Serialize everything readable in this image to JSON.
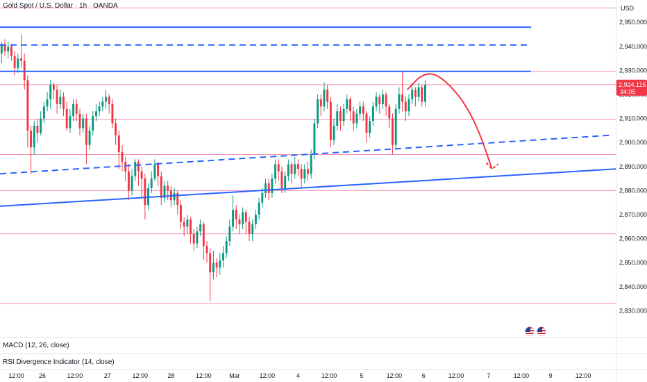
{
  "header": {
    "symbol_title": "Gold Spot / U.S. Dollar · 1h · OANDA"
  },
  "price_axis": {
    "currency": "USD"
  },
  "last_price": {
    "value": "2,924.115",
    "countdown": "34:05"
  },
  "indicators": [
    {
      "label": "MACD (12, 26, close)"
    },
    {
      "label": "RSI Divergence Indicator (14, close)"
    }
  ],
  "colors": {
    "up": "#089981",
    "down": "#f23645",
    "trend": "#2962ff",
    "levels": "#f48fb1",
    "forecast": "#f23645",
    "price_badge": "#f23645",
    "text": "#131722"
  },
  "chart_data": {
    "type": "candlestick",
    "title": "Gold Spot / U.S. Dollar · 1h · OANDA",
    "ylim": [
      2825.5,
      2957
    ],
    "yticks": [
      2830,
      2840,
      2850,
      2860,
      2870,
      2880,
      2890,
      2900,
      2910,
      2920,
      2930,
      2940,
      2950
    ],
    "xlim": [
      0,
      189
    ],
    "xticks": [
      {
        "x": 5,
        "label": "12:00"
      },
      {
        "x": 13,
        "label": "26"
      },
      {
        "x": 23,
        "label": "12:00"
      },
      {
        "x": 33,
        "label": "27"
      },
      {
        "x": 43,
        "label": "12:00"
      },
      {
        "x": 52.5,
        "label": "28"
      },
      {
        "x": 62.5,
        "label": "12:00"
      },
      {
        "x": 72,
        "label": "Mar"
      },
      {
        "x": 82,
        "label": "12:00"
      },
      {
        "x": 91.5,
        "label": "4"
      },
      {
        "x": 101,
        "label": "12:00"
      },
      {
        "x": 111,
        "label": "5"
      },
      {
        "x": 121,
        "label": "12:00"
      },
      {
        "x": 130,
        "label": "6"
      },
      {
        "x": 140,
        "label": "12:00"
      },
      {
        "x": 150,
        "label": "7"
      },
      {
        "x": 160,
        "label": "12:00"
      },
      {
        "x": 169,
        "label": "9"
      },
      {
        "x": 179,
        "label": "12:00"
      }
    ],
    "horizontal_levels": [
      2956,
      2929.6,
      2924.1,
      2909.5,
      2895,
      2880,
      2862,
      2833
    ],
    "trendlines": [
      {
        "style": "solid",
        "x1": 0,
        "y1": 2948,
        "x2": 163,
        "y2": 2948
      },
      {
        "style": "dashed",
        "x1": 0,
        "y1": 2940.6,
        "x2": 162,
        "y2": 2940.6
      },
      {
        "style": "solid",
        "x1": 0,
        "y1": 2929.6,
        "x2": 163,
        "y2": 2929.6
      },
      {
        "style": "dashed",
        "x1": 0,
        "y1": 2887,
        "x2": 187,
        "y2": 2903
      },
      {
        "style": "solid",
        "x1": 0,
        "y1": 2873.5,
        "x2": 189,
        "y2": 2889
      }
    ],
    "forecast_path": [
      [
        125,
        2922
      ],
      [
        130,
        2929
      ],
      [
        135,
        2928
      ],
      [
        142,
        2918
      ],
      [
        147,
        2905
      ],
      [
        151,
        2889
      ]
    ],
    "last_price": 2924.115,
    "candles": [
      [
        2937,
        2941,
        2933,
        2942
      ],
      [
        2941,
        2938,
        2936,
        2943
      ],
      [
        2938,
        2940,
        2935,
        2942
      ],
      [
        2940,
        2936,
        2934,
        2941
      ],
      [
        2936,
        2931,
        2928,
        2938
      ],
      [
        2931,
        2935,
        2929,
        2937
      ],
      [
        2935,
        2934,
        2931,
        2945
      ],
      [
        2934,
        2926,
        2922,
        2937
      ],
      [
        2926,
        2905,
        2898,
        2928
      ],
      [
        2905,
        2898,
        2887,
        2907
      ],
      [
        2898,
        2907,
        2895,
        2909
      ],
      [
        2907,
        2904,
        2900,
        2910
      ],
      [
        2904,
        2910,
        2903,
        2913
      ],
      [
        2910,
        2915,
        2908,
        2917
      ],
      [
        2915,
        2918,
        2913,
        2921
      ],
      [
        2918,
        2924,
        2914,
        2926
      ],
      [
        2924,
        2922,
        2918,
        2925
      ],
      [
        2922,
        2916,
        2912,
        2924
      ],
      [
        2916,
        2919,
        2914,
        2922
      ],
      [
        2919,
        2914,
        2911,
        2921
      ],
      [
        2914,
        2906,
        2905,
        2917
      ],
      [
        2906,
        2911,
        2904,
        2914
      ],
      [
        2911,
        2916,
        2909,
        2918
      ],
      [
        2916,
        2912,
        2909,
        2918
      ],
      [
        2912,
        2906,
        2903,
        2914
      ],
      [
        2906,
        2910,
        2904,
        2912
      ],
      [
        2910,
        2899,
        2891,
        2912
      ],
      [
        2899,
        2905,
        2897,
        2907
      ],
      [
        2905,
        2911,
        2903,
        2913
      ],
      [
        2911,
        2913,
        2909,
        2916
      ],
      [
        2913,
        2915,
        2911,
        2917
      ],
      [
        2915,
        2917,
        2913,
        2919
      ],
      [
        2917,
        2919,
        2914,
        2922
      ],
      [
        2919,
        2916,
        2912,
        2920
      ],
      [
        2916,
        2908,
        2906,
        2918
      ],
      [
        2908,
        2903,
        2899,
        2910
      ],
      [
        2903,
        2896,
        2889,
        2905
      ],
      [
        2896,
        2892,
        2888,
        2899
      ],
      [
        2892,
        2888,
        2884,
        2894
      ],
      [
        2888,
        2880,
        2876,
        2891
      ],
      [
        2880,
        2886,
        2878,
        2889
      ],
      [
        2886,
        2892,
        2884,
        2893
      ],
      [
        2892,
        2888,
        2882,
        2893
      ],
      [
        2888,
        2885,
        2877,
        2890
      ],
      [
        2885,
        2874,
        2868,
        2887
      ],
      [
        2874,
        2881,
        2872,
        2883
      ],
      [
        2881,
        2885,
        2879,
        2888
      ],
      [
        2885,
        2891,
        2884,
        2893
      ],
      [
        2891,
        2886,
        2882,
        2892
      ],
      [
        2886,
        2877,
        2874,
        2888
      ],
      [
        2877,
        2882,
        2875,
        2884
      ],
      [
        2882,
        2880,
        2876,
        2884
      ],
      [
        2880,
        2876,
        2873,
        2882
      ],
      [
        2876,
        2879,
        2874,
        2881
      ],
      [
        2879,
        2874,
        2870,
        2880
      ],
      [
        2874,
        2867,
        2864,
        2876
      ],
      [
        2867,
        2865,
        2861,
        2869
      ],
      [
        2865,
        2868,
        2862,
        2870
      ],
      [
        2868,
        2862,
        2858,
        2869
      ],
      [
        2862,
        2858,
        2855,
        2864
      ],
      [
        2858,
        2863,
        2856,
        2865
      ],
      [
        2863,
        2866,
        2861,
        2868
      ],
      [
        2866,
        2857,
        2851,
        2867
      ],
      [
        2857,
        2854,
        2850,
        2859
      ],
      [
        2854,
        2846,
        2834,
        2856
      ],
      [
        2846,
        2850,
        2843,
        2855
      ],
      [
        2850,
        2848,
        2844,
        2852
      ],
      [
        2848,
        2851,
        2845,
        2854
      ],
      [
        2851,
        2854,
        2848,
        2857
      ],
      [
        2854,
        2859,
        2852,
        2861
      ],
      [
        2859,
        2865,
        2857,
        2868
      ],
      [
        2865,
        2872,
        2863,
        2878
      ],
      [
        2872,
        2868,
        2864,
        2874
      ],
      [
        2868,
        2866,
        2862,
        2870
      ],
      [
        2866,
        2871,
        2864,
        2873
      ],
      [
        2871,
        2867,
        2862,
        2872
      ],
      [
        2867,
        2862,
        2859,
        2869
      ],
      [
        2862,
        2866,
        2859,
        2868
      ],
      [
        2866,
        2870,
        2864,
        2872
      ],
      [
        2870,
        2875,
        2868,
        2877
      ],
      [
        2875,
        2879,
        2873,
        2881
      ],
      [
        2879,
        2883,
        2877,
        2885
      ],
      [
        2883,
        2879,
        2876,
        2885
      ],
      [
        2879,
        2885,
        2877,
        2887
      ],
      [
        2885,
        2891,
        2883,
        2893
      ],
      [
        2891,
        2888,
        2884,
        2893
      ],
      [
        2888,
        2881,
        2879,
        2890
      ],
      [
        2881,
        2886,
        2879,
        2888
      ],
      [
        2886,
        2891,
        2884,
        2893
      ],
      [
        2891,
        2887,
        2883,
        2892
      ],
      [
        2887,
        2891,
        2885,
        2894
      ],
      [
        2891,
        2889,
        2886,
        2893
      ],
      [
        2889,
        2885,
        2881,
        2891
      ],
      [
        2885,
        2889,
        2883,
        2891
      ],
      [
        2889,
        2887,
        2884,
        2892
      ],
      [
        2887,
        2895,
        2885,
        2897
      ],
      [
        2895,
        2908,
        2893,
        2910
      ],
      [
        2908,
        2918,
        2906,
        2920
      ],
      [
        2918,
        2915,
        2911,
        2920
      ],
      [
        2915,
        2922,
        2913,
        2925
      ],
      [
        2922,
        2917,
        2914,
        2924
      ],
      [
        2917,
        2901,
        2898,
        2919
      ],
      [
        2901,
        2907,
        2899,
        2910
      ],
      [
        2907,
        2913,
        2905,
        2916
      ],
      [
        2913,
        2909,
        2905,
        2915
      ],
      [
        2909,
        2914,
        2907,
        2916
      ],
      [
        2914,
        2918,
        2912,
        2920
      ],
      [
        2918,
        2913,
        2909,
        2919
      ],
      [
        2913,
        2908,
        2905,
        2915
      ],
      [
        2908,
        2912,
        2906,
        2914
      ],
      [
        2912,
        2915,
        2910,
        2917
      ],
      [
        2915,
        2912,
        2909,
        2917
      ],
      [
        2912,
        2904,
        2900,
        2913
      ],
      [
        2904,
        2909,
        2902,
        2911
      ],
      [
        2909,
        2915,
        2907,
        2917
      ],
      [
        2915,
        2919,
        2913,
        2921
      ],
      [
        2919,
        2916,
        2912,
        2920
      ],
      [
        2916,
        2920,
        2914,
        2922
      ],
      [
        2920,
        2915,
        2911,
        2921
      ],
      [
        2915,
        2910,
        2906,
        2916
      ],
      [
        2910,
        2899,
        2895,
        2912
      ],
      [
        2899,
        2914,
        2897,
        2916
      ],
      [
        2914,
        2920,
        2912,
        2923
      ],
      [
        2920,
        2917,
        2913,
        2930
      ],
      [
        2917,
        2913,
        2909,
        2919
      ],
      [
        2913,
        2918,
        2911,
        2920
      ],
      [
        2918,
        2922,
        2916,
        2924
      ],
      [
        2922,
        2919,
        2915,
        2923
      ],
      [
        2919,
        2923,
        2917,
        2925
      ],
      [
        2923,
        2917,
        2915,
        2924
      ],
      [
        2917,
        2924,
        2915,
        2926
      ]
    ]
  }
}
